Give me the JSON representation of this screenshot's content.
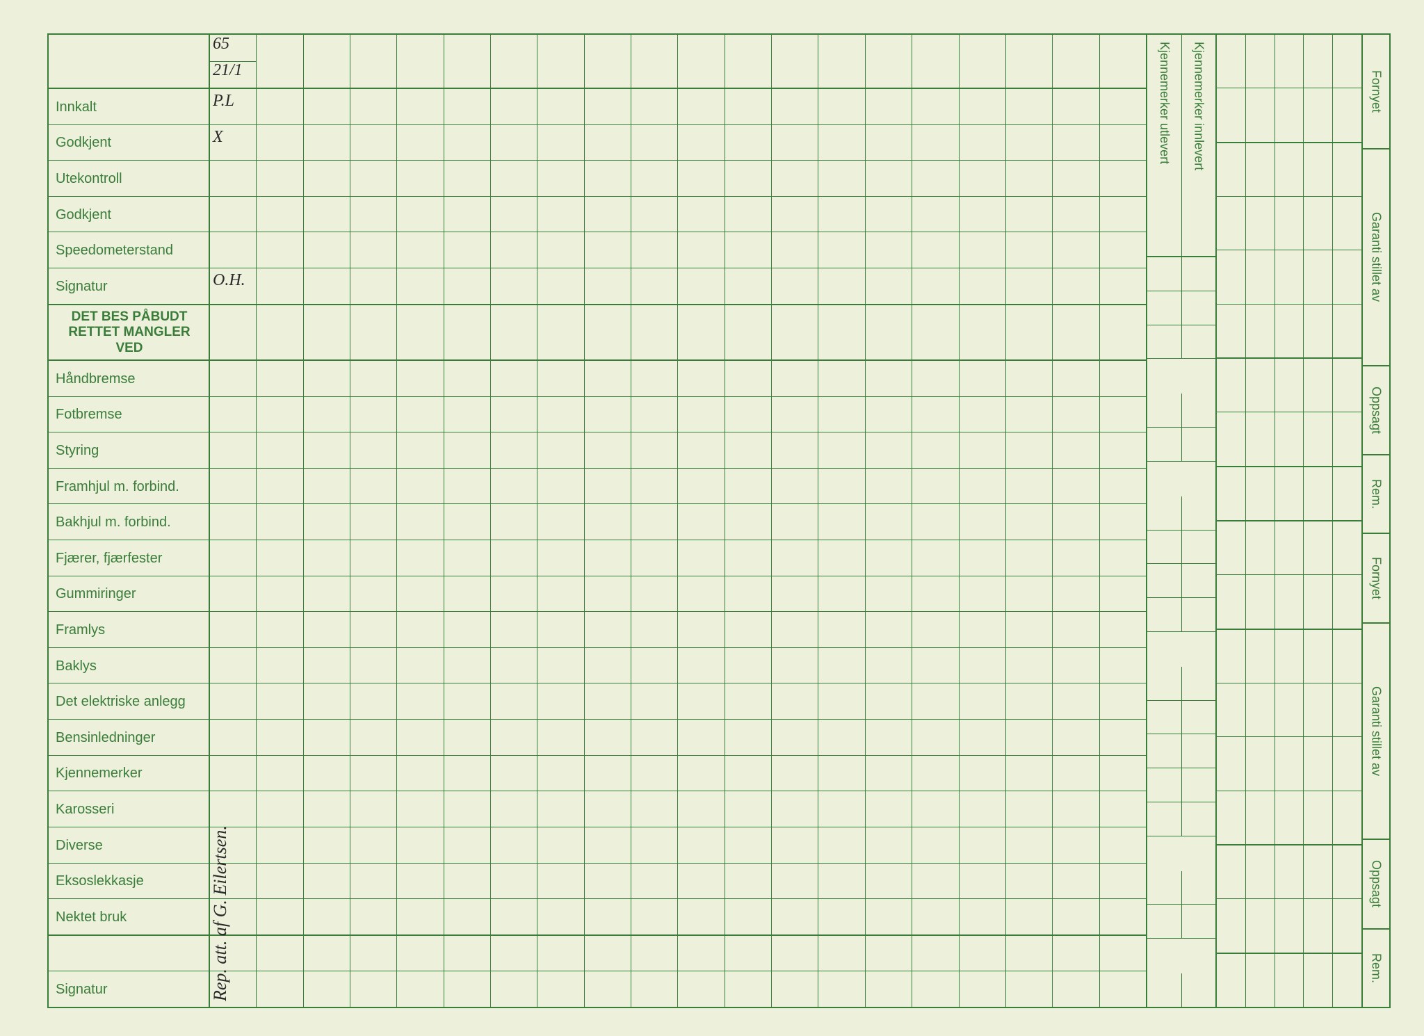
{
  "colors": {
    "paper": "#edf0db",
    "ink_green": "#3a7d3a",
    "handwriting": "#2a2a2a"
  },
  "main_grid_columns": 20,
  "header": {
    "year_value": "65",
    "date_value": "21/1"
  },
  "rows": [
    {
      "label": "Innkalt",
      "col1_value": "P.L"
    },
    {
      "label": "Godkjent",
      "col1_value": "X"
    },
    {
      "label": "Utekontroll",
      "col1_value": ""
    },
    {
      "label": "Godkjent",
      "col1_value": ""
    },
    {
      "label": "Speedometerstand",
      "col1_value": ""
    },
    {
      "label": "Signatur",
      "col1_value": "O.H.",
      "thick_after": true
    },
    {
      "label": "DET BES PÅBUDT RETTET MANGLER VED",
      "bold": true,
      "col1_value": "",
      "thick_after": true
    },
    {
      "label": "Håndbremse",
      "col1_value": ""
    },
    {
      "label": "Fotbremse",
      "col1_value": ""
    },
    {
      "label": "Styring",
      "col1_value": ""
    },
    {
      "label": "Framhjul m. forbind.",
      "col1_value": ""
    },
    {
      "label": "Bakhjul m. forbind.",
      "col1_value": ""
    },
    {
      "label": "Fjærer, fjærfester",
      "col1_value": ""
    },
    {
      "label": "Gummiringer",
      "col1_value": ""
    },
    {
      "label": "Framlys",
      "col1_value": ""
    },
    {
      "label": "Baklys",
      "col1_value": ""
    },
    {
      "label": "Det elektriske anlegg",
      "col1_value": ""
    },
    {
      "label": "Bensinledninger",
      "col1_value": ""
    },
    {
      "label": "Kjennemerker",
      "col1_value": ""
    },
    {
      "label": "Karosseri",
      "col1_value": ""
    },
    {
      "label": "Diverse",
      "col1_value": ""
    },
    {
      "label": "Eksoslekkasje",
      "col1_value": ""
    },
    {
      "label": "Nektet bruk",
      "col1_value": "",
      "thick_after": true
    },
    {
      "label": "",
      "col1_value": ""
    },
    {
      "label": "Signatur",
      "col1_value": ""
    }
  ],
  "side_panel": {
    "col1": "Kjennemerker utlevert",
    "col2": "Kjennemerker innlevert"
  },
  "right_labels": [
    {
      "text": "Fornyet",
      "flex": 2
    },
    {
      "text": "Garanti stillet av",
      "flex": 4
    },
    {
      "text": "Oppsagt",
      "flex": 1.5
    },
    {
      "text": "Rem.",
      "flex": 1.3
    },
    {
      "text": "Fornyet",
      "flex": 1.5
    },
    {
      "text": "Garanti stillet av",
      "flex": 4
    },
    {
      "text": "Oppsagt",
      "flex": 1.5
    },
    {
      "text": "Rem.",
      "flex": 1.3
    }
  ],
  "right_grid_columns": 5,
  "vertical_signature": "Rep. att. af G. Eilertsen."
}
